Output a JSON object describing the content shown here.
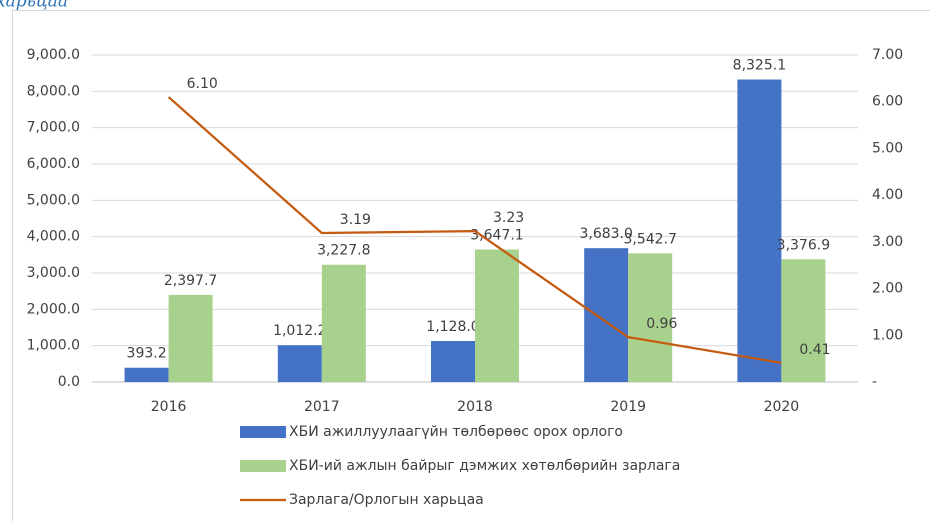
{
  "caption": "харьцаа",
  "chart_data": {
    "type": "bar",
    "categories": [
      "2016",
      "2017",
      "2018",
      "2019",
      "2020"
    ],
    "series": [
      {
        "name": "ХБИ ажиллуулаагүйн төлбөрөөс орох орлого",
        "color": "#4472c4",
        "values": [
          393.2,
          1012.2,
          1128.0,
          3683.0,
          8325.1
        ],
        "value_labels": [
          "393.2",
          "1,012.2",
          "1,128.0",
          "3,683.0",
          "8,325.1"
        ]
      },
      {
        "name": "ХБИ-ий ажлын байрыг дэмжих хөтөлбөрийн зарлага",
        "color": "#a9d18e",
        "values": [
          2397.7,
          3227.8,
          3647.1,
          3542.7,
          3376.9
        ],
        "value_labels": [
          "2,397.7",
          "3,227.8",
          "3,647.1",
          "3,542.7",
          "3,376.9"
        ]
      },
      {
        "name": "Зарлага/Орлогын харьцаа",
        "color": "#c55a11",
        "type": "line",
        "axis": "y2",
        "values": [
          6.1,
          3.19,
          3.23,
          0.96,
          0.41
        ],
        "value_labels": [
          "6.10",
          "3.19",
          "3.23",
          "0.96",
          "0.41"
        ]
      }
    ],
    "ylim": [
      0,
      9000
    ],
    "yticks": [
      {
        "value": 0,
        "label": "0.0"
      },
      {
        "value": 1000,
        "label": "1,000.0"
      },
      {
        "value": 2000,
        "label": "2,000.0"
      },
      {
        "value": 3000,
        "label": "3,000.0"
      },
      {
        "value": 4000,
        "label": "4,000.0"
      },
      {
        "value": 5000,
        "label": "5,000.0"
      },
      {
        "value": 6000,
        "label": "6,000.0"
      },
      {
        "value": 7000,
        "label": "7,000.0"
      },
      {
        "value": 8000,
        "label": "8,000.0"
      },
      {
        "value": 9000,
        "label": "9,000.0"
      }
    ],
    "y2lim": [
      0,
      7
    ],
    "y2ticks": [
      {
        "value": 0,
        "label": "-"
      },
      {
        "value": 1,
        "label": "1.00"
      },
      {
        "value": 2,
        "label": "2.00"
      },
      {
        "value": 3,
        "label": "3.00"
      },
      {
        "value": 4,
        "label": "4.00"
      },
      {
        "value": 5,
        "label": "5.00"
      },
      {
        "value": 6,
        "label": "6.00"
      },
      {
        "value": 7,
        "label": "7.00"
      }
    ],
    "grid": true,
    "legend": "bottom"
  }
}
